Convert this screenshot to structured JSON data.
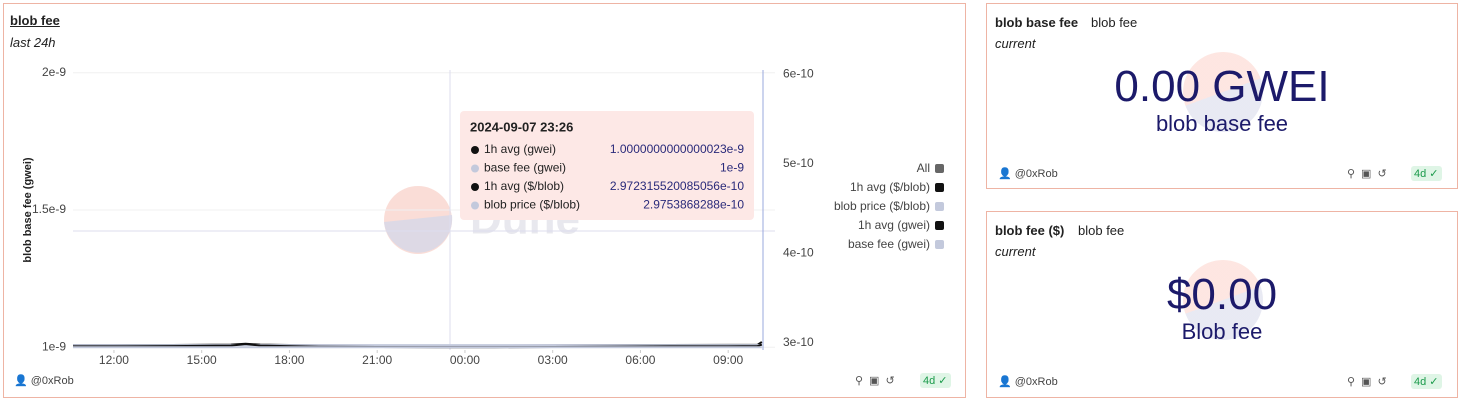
{
  "chart_data": {
    "type": "line",
    "title": "blob fee",
    "subtitle": "last 24h",
    "y_label": "blob base fee (gwei)",
    "watermark": "Dune",
    "x": [
      10.6,
      12,
      14,
      16,
      16.5,
      17,
      19,
      21,
      23,
      25,
      27,
      29,
      31,
      33,
      34,
      34.15
    ],
    "xlim": [
      10.6,
      34.6
    ],
    "xticks": [
      {
        "value": 12,
        "label": "12:00"
      },
      {
        "value": 15,
        "label": "15:00"
      },
      {
        "value": 18,
        "label": "18:00"
      },
      {
        "value": 21,
        "label": "21:00"
      },
      {
        "value": 24,
        "label": "00:00"
      },
      {
        "value": 27,
        "label": "03:00"
      },
      {
        "value": 30,
        "label": "06:00"
      },
      {
        "value": 33,
        "label": "09:00"
      }
    ],
    "ylim": [
      9.9e-10,
      2.01e-09
    ],
    "yticks": [
      1e-09,
      1.5e-09,
      2e-09
    ],
    "y2lim": [
      2.92e-10,
      6.05e-10
    ],
    "y2ticks": [
      3e-10,
      4e-10,
      5e-10,
      6e-10
    ],
    "grid": true,
    "legend": "right",
    "legend_all": "All",
    "series": [
      {
        "name": "1h avg ($/blob)",
        "color": "#111111",
        "axis": "y2",
        "values": [
          2.975e-10,
          2.975e-10,
          2.976e-10,
          2.98e-10,
          2.99e-10,
          2.98e-10,
          2.972e-10,
          2.97e-10,
          2.968e-10,
          2.97e-10,
          2.972e-10,
          2.975e-10,
          2.976e-10,
          2.977e-10,
          2.978e-10,
          3.01e-10
        ]
      },
      {
        "name": "blob price ($/blob)",
        "color": "#c3c9dc",
        "axis": "y2",
        "values": [
          2.975e-10,
          2.975e-10,
          2.975e-10,
          2.975e-10,
          2.975e-10,
          2.975e-10,
          2.975e-10,
          2.975e-10,
          2.975e-10,
          2.975e-10,
          2.975e-10,
          2.975e-10,
          2.975e-10,
          2.975e-10,
          2.975e-10,
          2.975e-10
        ]
      },
      {
        "name": "1h avg (gwei)",
        "color": "#111111",
        "values": [
          1.003e-09,
          1.003e-09,
          1.004e-09,
          1.006e-09,
          1.012e-09,
          1.006e-09,
          1.002e-09,
          1.001e-09,
          1e-09,
          1e-09,
          1.001e-09,
          1.002e-09,
          1.003e-09,
          1.003e-09,
          1.004e-09,
          1.01e-09
        ]
      },
      {
        "name": "base fee (gwei)",
        "color": "#c3c9dc",
        "values": [
          1e-09,
          1e-09,
          1e-09,
          1e-09,
          1e-09,
          1e-09,
          1e-09,
          1e-09,
          1e-09,
          1e-09,
          1e-09,
          1e-09,
          1e-09,
          1e-09,
          1e-09,
          1e-09
        ]
      }
    ],
    "tooltip": {
      "title": "2024-09-07 23:26",
      "rows": [
        {
          "name": "1h avg (gwei)",
          "color": "#111111",
          "value": 1.0000000000000023e-09
        },
        {
          "name": "base fee (gwei)",
          "color": "#c3c9dc",
          "value": 1e-09
        },
        {
          "name": "1h avg ($/blob)",
          "color": "#111111",
          "value": 2.972315520085056e-10
        },
        {
          "name": "blob price ($/blob)",
          "color": "#c3c9dc",
          "value": 2.9753868288e-10
        }
      ]
    }
  },
  "footer": {
    "author": "@0xRob",
    "age": "4d"
  },
  "counters": [
    {
      "title": "blob base fee",
      "query": "blob fee",
      "subtitle": "current",
      "value": "0.00 GWEI",
      "label": "blob base fee"
    },
    {
      "title": "blob fee ($)",
      "query": "blob fee",
      "subtitle": "current",
      "value": "$0.00",
      "label": "Blob fee"
    }
  ]
}
